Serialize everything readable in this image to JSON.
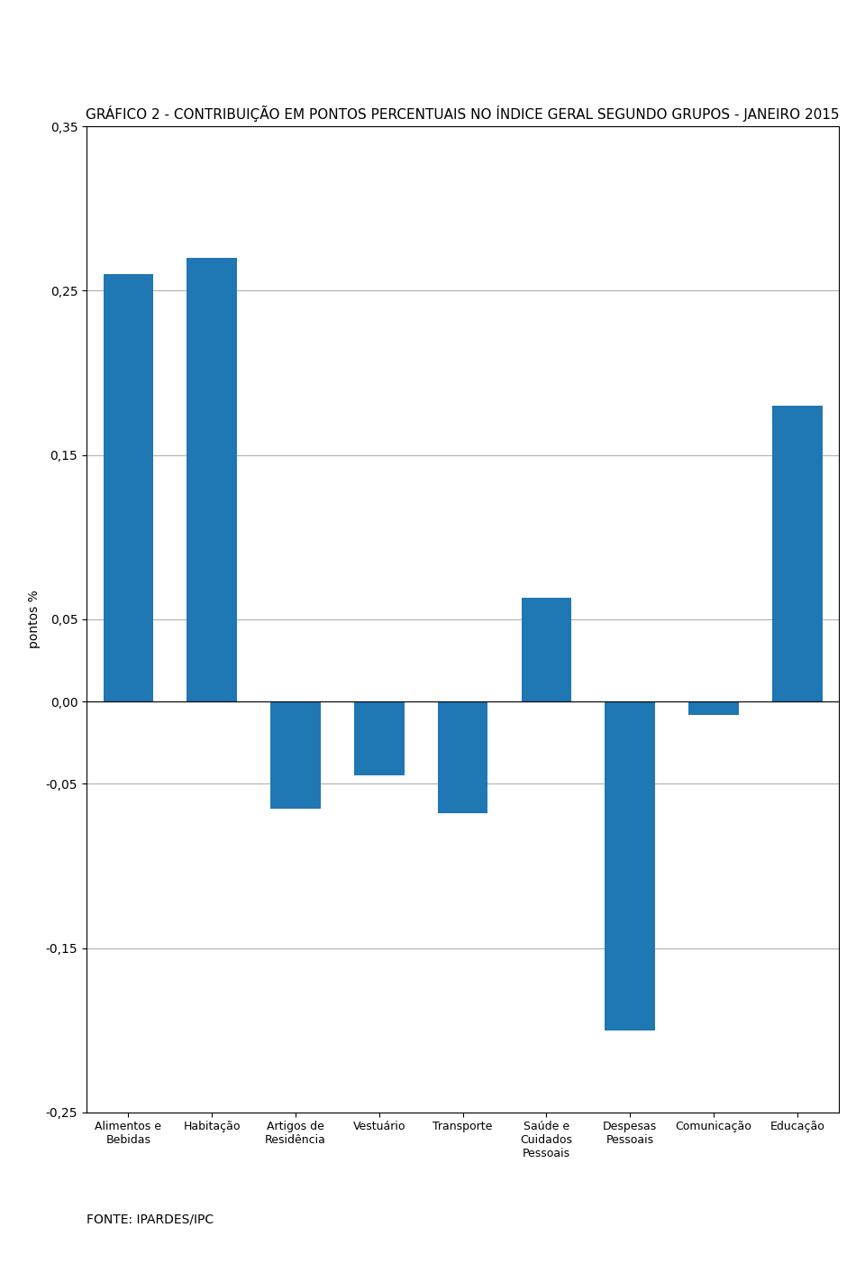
{
  "chart_data": {
    "type": "bar",
    "title": "GRÁFICO 2 - CONTRIBUIÇÃO EM PONTOS PERCENTUAIS NO ÍNDICE GERAL SEGUNDO GRUPOS - JANEIRO 2015",
    "y_label": "pontos %",
    "annotations": [
      "FONTE: IPARDES/IPC"
    ],
    "categories": [
      "Alimentos e\nBebidas",
      "Habitação",
      "Artigos de\nResidência",
      "Vestuário",
      "Transporte",
      "Saúde e\nCuidados\nPessoais",
      "Despesas\nPessoais",
      "Comunicação",
      "Educação"
    ],
    "values": [
      0.26,
      0.27,
      -0.065,
      -0.045,
      -0.068,
      0.063,
      -0.2,
      -0.008,
      0.18
    ],
    "ylim": [
      -0.25,
      0.35
    ],
    "yticks": [
      {
        "value": -0.25,
        "label": "-0,25"
      },
      {
        "value": -0.15,
        "label": "-0,15"
      },
      {
        "value": -0.05,
        "label": "-0,05"
      },
      {
        "value": 0.0,
        "label": "0,00"
      },
      {
        "value": 0.05,
        "label": "0,05"
      },
      {
        "value": 0.15,
        "label": "0,15"
      },
      {
        "value": 0.25,
        "label": "0,25"
      },
      {
        "value": 0.35,
        "label": "0,35"
      }
    ],
    "grid": true
  }
}
